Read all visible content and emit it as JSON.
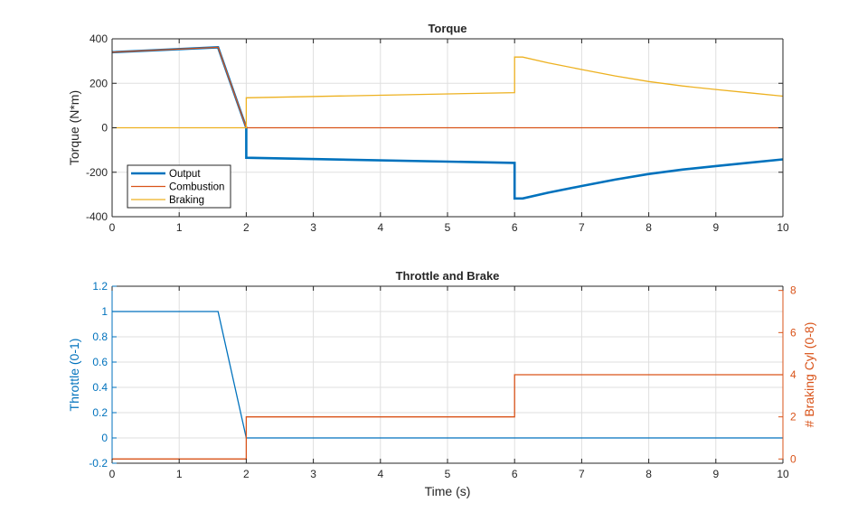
{
  "colors": {
    "output": "#0072BD",
    "combustion": "#D95319",
    "braking": "#EDB120",
    "throttle": "#0072BD",
    "braking_cyl": "#D95319",
    "grid": "#DFDFDF",
    "axis": "#262626"
  },
  "chart_data": [
    {
      "type": "line",
      "title": "Torque",
      "xlabel": "",
      "ylabel": "Torque (N*m)",
      "xlim": [
        0,
        10
      ],
      "ylim": [
        -400,
        400
      ],
      "xticks": [
        0,
        1,
        2,
        3,
        4,
        5,
        6,
        7,
        8,
        9,
        10
      ],
      "yticks": [
        -400,
        -200,
        0,
        200,
        400
      ],
      "grid": true,
      "legend_position": "bottom-left",
      "series": [
        {
          "name": "Output",
          "color": "#0072BD",
          "width": 2.6,
          "x": [
            0,
            1.58,
            2.0,
            2.0,
            6.0,
            6.0,
            6.12,
            6.5,
            7,
            7.5,
            8,
            8.5,
            9,
            9.5,
            10
          ],
          "y": [
            340,
            362,
            0,
            -135,
            -158,
            -318,
            -318,
            -292,
            -262,
            -233,
            -208,
            -188,
            -172,
            -157,
            -142
          ]
        },
        {
          "name": "Combustion",
          "color": "#D95319",
          "width": 1.3,
          "x": [
            0,
            1.58,
            2.0,
            10
          ],
          "y": [
            340,
            362,
            0,
            0
          ]
        },
        {
          "name": "Braking",
          "color": "#EDB120",
          "width": 1.3,
          "x": [
            0,
            2.0,
            2.0,
            6.0,
            6.0,
            6.12,
            6.5,
            7,
            7.5,
            8,
            8.5,
            9,
            9.5,
            10
          ],
          "y": [
            0,
            0,
            135,
            158,
            318,
            318,
            292,
            262,
            233,
            208,
            188,
            172,
            157,
            142
          ]
        }
      ]
    },
    {
      "type": "line",
      "title": "Throttle and Brake",
      "xlabel": "Time (s)",
      "ylabel": "Throttle (0-1)",
      "ylabel_right": "# Braking Cyl (0-8)",
      "xlim": [
        0,
        10
      ],
      "ylim": [
        -0.2,
        1.2
      ],
      "ylim_right": [
        -0.2,
        8.2
      ],
      "xticks": [
        0,
        1,
        2,
        3,
        4,
        5,
        6,
        7,
        8,
        9,
        10
      ],
      "yticks": [
        -0.2,
        0,
        0.2,
        0.4,
        0.6,
        0.8,
        1,
        1.2
      ],
      "ytick_labels": [
        "-0.2",
        "0",
        "0.2",
        "0.4",
        "0.6",
        "0.8",
        "1",
        "1.2"
      ],
      "yticks_right": [
        0,
        2,
        4,
        6,
        8
      ],
      "grid": true,
      "series": [
        {
          "axis": "left",
          "color": "#0072BD",
          "width": 1.3,
          "x": [
            0,
            1.58,
            2.0,
            10
          ],
          "y": [
            1,
            1,
            0,
            0
          ]
        },
        {
          "axis": "right",
          "color": "#D95319",
          "width": 1.3,
          "x": [
            0,
            2.0,
            2.0,
            6.0,
            6.0,
            10
          ],
          "y": [
            0,
            0,
            2,
            2,
            4,
            4
          ]
        }
      ]
    }
  ]
}
